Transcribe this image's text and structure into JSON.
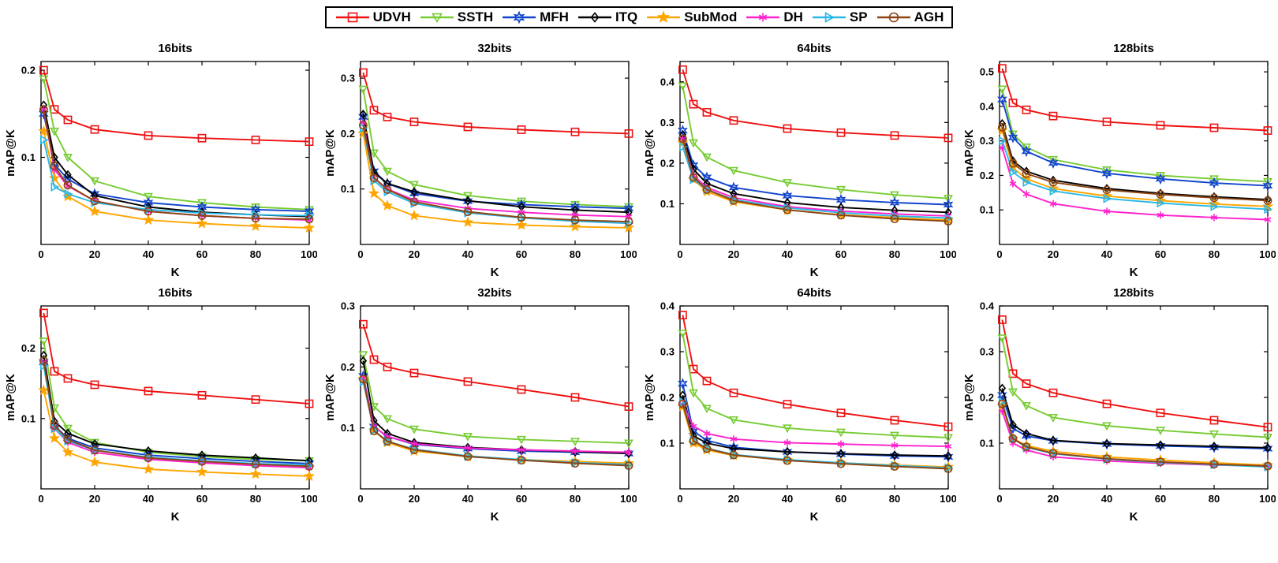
{
  "figure": {
    "type": "line-chart-grid",
    "rows": 2,
    "cols": 4
  },
  "legend": {
    "items": [
      {
        "label": "UDVH",
        "color": "#ee1111",
        "marker": "square"
      },
      {
        "label": "SSTH",
        "color": "#77cc33",
        "marker": "triangle-down"
      },
      {
        "label": "MFH",
        "color": "#1144cc",
        "marker": "hexagram"
      },
      {
        "label": "ITQ",
        "color": "#000000",
        "marker": "diamond"
      },
      {
        "label": "SubMod",
        "color": "#ffa500",
        "marker": "pentagram"
      },
      {
        "label": "DH",
        "color": "#ff22cc",
        "marker": "asterisk"
      },
      {
        "label": "SP",
        "color": "#2ab8e8",
        "marker": "triangle-right"
      },
      {
        "label": "AGH",
        "color": "#8b4513",
        "marker": "circle"
      }
    ]
  },
  "chart_data": [
    {
      "type": "line",
      "row": 1,
      "title": "16bits",
      "xlabel": "K",
      "ylabel": "mAP@K",
      "x": [
        1,
        5,
        10,
        20,
        40,
        60,
        80,
        100
      ],
      "xlim": [
        0,
        100
      ],
      "xticks": [
        0,
        20,
        40,
        60,
        80,
        100
      ],
      "ylim": [
        0,
        0.21
      ],
      "yticks": [
        0.1,
        0.2
      ],
      "series": [
        {
          "name": "UDVH",
          "values": [
            0.2,
            0.155,
            0.143,
            0.132,
            0.125,
            0.122,
            0.12,
            0.118
          ]
        },
        {
          "name": "SSTH",
          "values": [
            0.19,
            0.13,
            0.1,
            0.073,
            0.055,
            0.048,
            0.043,
            0.04
          ]
        },
        {
          "name": "MFH",
          "values": [
            0.15,
            0.092,
            0.075,
            0.058,
            0.048,
            0.043,
            0.04,
            0.038
          ]
        },
        {
          "name": "ITQ",
          "values": [
            0.16,
            0.1,
            0.08,
            0.056,
            0.043,
            0.037,
            0.034,
            0.032
          ]
        },
        {
          "name": "SubMod",
          "values": [
            0.13,
            0.076,
            0.055,
            0.038,
            0.028,
            0.024,
            0.021,
            0.019
          ]
        },
        {
          "name": "DH",
          "values": [
            0.155,
            0.086,
            0.067,
            0.05,
            0.038,
            0.033,
            0.03,
            0.028
          ]
        },
        {
          "name": "SP",
          "values": [
            0.12,
            0.066,
            0.058,
            0.048,
            0.04,
            0.036,
            0.034,
            0.033
          ]
        },
        {
          "name": "AGH",
          "values": [
            0.155,
            0.09,
            0.068,
            0.05,
            0.038,
            0.033,
            0.03,
            0.029
          ]
        }
      ]
    },
    {
      "type": "line",
      "row": 1,
      "title": "32bits",
      "xlabel": "K",
      "ylabel": "mAP@K",
      "x": [
        1,
        5,
        10,
        20,
        40,
        60,
        80,
        100
      ],
      "xlim": [
        0,
        100
      ],
      "xticks": [
        0,
        20,
        40,
        60,
        80,
        100
      ],
      "ylim": [
        0,
        0.33
      ],
      "yticks": [
        0.1,
        0.2,
        0.3
      ],
      "series": [
        {
          "name": "UDVH",
          "values": [
            0.31,
            0.242,
            0.23,
            0.221,
            0.212,
            0.207,
            0.203,
            0.2
          ]
        },
        {
          "name": "SSTH",
          "values": [
            0.28,
            0.165,
            0.132,
            0.108,
            0.088,
            0.078,
            0.072,
            0.068
          ]
        },
        {
          "name": "MFH",
          "values": [
            0.23,
            0.132,
            0.11,
            0.092,
            0.078,
            0.072,
            0.068,
            0.065
          ]
        },
        {
          "name": "ITQ",
          "values": [
            0.235,
            0.13,
            0.11,
            0.095,
            0.079,
            0.068,
            0.062,
            0.058
          ]
        },
        {
          "name": "SubMod",
          "values": [
            0.2,
            0.092,
            0.07,
            0.052,
            0.04,
            0.035,
            0.032,
            0.03
          ]
        },
        {
          "name": "DH",
          "values": [
            0.22,
            0.12,
            0.1,
            0.08,
            0.065,
            0.058,
            0.053,
            0.05
          ]
        },
        {
          "name": "SP",
          "values": [
            0.21,
            0.115,
            0.095,
            0.074,
            0.057,
            0.048,
            0.042,
            0.038
          ]
        },
        {
          "name": "AGH",
          "values": [
            0.215,
            0.12,
            0.099,
            0.077,
            0.059,
            0.049,
            0.044,
            0.041
          ]
        }
      ]
    },
    {
      "type": "line",
      "row": 1,
      "title": "64bits",
      "xlabel": "K",
      "ylabel": "mAP@K",
      "x": [
        1,
        5,
        10,
        20,
        40,
        60,
        80,
        100
      ],
      "xlim": [
        0,
        100
      ],
      "xticks": [
        0,
        20,
        40,
        60,
        80,
        100
      ],
      "ylim": [
        0,
        0.45
      ],
      "yticks": [
        0.1,
        0.2,
        0.3,
        0.4
      ],
      "series": [
        {
          "name": "UDVH",
          "values": [
            0.43,
            0.345,
            0.325,
            0.305,
            0.285,
            0.275,
            0.268,
            0.262
          ]
        },
        {
          "name": "SSTH",
          "values": [
            0.39,
            0.25,
            0.215,
            0.182,
            0.152,
            0.135,
            0.122,
            0.113
          ]
        },
        {
          "name": "MFH",
          "values": [
            0.28,
            0.195,
            0.165,
            0.14,
            0.12,
            0.11,
            0.103,
            0.098
          ]
        },
        {
          "name": "ITQ",
          "values": [
            0.27,
            0.185,
            0.15,
            0.125,
            0.103,
            0.091,
            0.084,
            0.079
          ]
        },
        {
          "name": "SubMod",
          "values": [
            0.25,
            0.16,
            0.13,
            0.105,
            0.085,
            0.073,
            0.066,
            0.06
          ]
        },
        {
          "name": "DH",
          "values": [
            0.26,
            0.17,
            0.14,
            0.115,
            0.093,
            0.082,
            0.075,
            0.07
          ]
        },
        {
          "name": "SP",
          "values": [
            0.24,
            0.16,
            0.135,
            0.11,
            0.09,
            0.078,
            0.07,
            0.065
          ]
        },
        {
          "name": "AGH",
          "values": [
            0.26,
            0.165,
            0.135,
            0.108,
            0.085,
            0.072,
            0.063,
            0.057
          ]
        }
      ]
    },
    {
      "type": "line",
      "row": 1,
      "title": "128bits",
      "xlabel": "K",
      "ylabel": "mAP@K",
      "x": [
        1,
        5,
        10,
        20,
        40,
        60,
        80,
        100
      ],
      "xlim": [
        0,
        100
      ],
      "xticks": [
        0,
        20,
        40,
        60,
        80,
        100
      ],
      "ylim": [
        0,
        0.53
      ],
      "yticks": [
        0.1,
        0.2,
        0.3,
        0.4,
        0.5
      ],
      "series": [
        {
          "name": "UDVH",
          "values": [
            0.51,
            0.41,
            0.39,
            0.372,
            0.355,
            0.345,
            0.338,
            0.33
          ]
        },
        {
          "name": "SSTH",
          "values": [
            0.45,
            0.32,
            0.282,
            0.246,
            0.216,
            0.2,
            0.19,
            0.182
          ]
        },
        {
          "name": "MFH",
          "values": [
            0.42,
            0.31,
            0.27,
            0.236,
            0.206,
            0.19,
            0.178,
            0.17
          ]
        },
        {
          "name": "ITQ",
          "values": [
            0.35,
            0.242,
            0.212,
            0.186,
            0.162,
            0.148,
            0.138,
            0.13
          ]
        },
        {
          "name": "SubMod",
          "values": [
            0.33,
            0.222,
            0.19,
            0.162,
            0.14,
            0.127,
            0.117,
            0.11
          ]
        },
        {
          "name": "DH",
          "values": [
            0.28,
            0.176,
            0.146,
            0.118,
            0.096,
            0.085,
            0.078,
            0.072
          ]
        },
        {
          "name": "SP",
          "values": [
            0.3,
            0.21,
            0.18,
            0.155,
            0.133,
            0.12,
            0.11,
            0.102
          ]
        },
        {
          "name": "AGH",
          "values": [
            0.34,
            0.235,
            0.205,
            0.18,
            0.158,
            0.145,
            0.135,
            0.127
          ]
        }
      ]
    },
    {
      "type": "line",
      "row": 2,
      "title": "16bits",
      "xlabel": "K",
      "ylabel": "mAP@K",
      "x": [
        1,
        5,
        10,
        20,
        40,
        60,
        80,
        100
      ],
      "xlim": [
        0,
        100
      ],
      "xticks": [
        0,
        20,
        40,
        60,
        80,
        100
      ],
      "ylim": [
        0,
        0.26
      ],
      "yticks": [
        0.1,
        0.2
      ],
      "series": [
        {
          "name": "UDVH",
          "values": [
            0.25,
            0.167,
            0.157,
            0.148,
            0.139,
            0.133,
            0.127,
            0.121
          ]
        },
        {
          "name": "SSTH",
          "values": [
            0.21,
            0.115,
            0.086,
            0.066,
            0.052,
            0.046,
            0.042,
            0.04
          ]
        },
        {
          "name": "MFH",
          "values": [
            0.18,
            0.09,
            0.072,
            0.058,
            0.048,
            0.043,
            0.039,
            0.036
          ]
        },
        {
          "name": "ITQ",
          "values": [
            0.19,
            0.096,
            0.079,
            0.064,
            0.054,
            0.048,
            0.044,
            0.04
          ]
        },
        {
          "name": "SubMod",
          "values": [
            0.14,
            0.072,
            0.052,
            0.038,
            0.028,
            0.024,
            0.021,
            0.018
          ]
        },
        {
          "name": "DH",
          "values": [
            0.18,
            0.086,
            0.066,
            0.052,
            0.042,
            0.037,
            0.033,
            0.03
          ]
        },
        {
          "name": "SP",
          "values": [
            0.175,
            0.086,
            0.068,
            0.055,
            0.045,
            0.04,
            0.036,
            0.034
          ]
        },
        {
          "name": "AGH",
          "values": [
            0.182,
            0.09,
            0.07,
            0.055,
            0.044,
            0.039,
            0.035,
            0.032
          ]
        }
      ]
    },
    {
      "type": "line",
      "row": 2,
      "title": "32bits",
      "xlabel": "K",
      "ylabel": "mAP@K",
      "x": [
        1,
        5,
        10,
        20,
        40,
        60,
        80,
        100
      ],
      "xlim": [
        0,
        100
      ],
      "xticks": [
        0,
        20,
        40,
        60,
        80,
        100
      ],
      "ylim": [
        0,
        0.3
      ],
      "yticks": [
        0.1,
        0.2,
        0.3
      ],
      "series": [
        {
          "name": "UDVH",
          "values": [
            0.27,
            0.212,
            0.2,
            0.19,
            0.176,
            0.163,
            0.15,
            0.135
          ]
        },
        {
          "name": "SSTH",
          "values": [
            0.22,
            0.135,
            0.115,
            0.098,
            0.086,
            0.081,
            0.078,
            0.075
          ]
        },
        {
          "name": "MFH",
          "values": [
            0.185,
            0.102,
            0.086,
            0.073,
            0.066,
            0.062,
            0.06,
            0.058
          ]
        },
        {
          "name": "ITQ",
          "values": [
            0.21,
            0.112,
            0.091,
            0.076,
            0.068,
            0.064,
            0.061,
            0.058
          ]
        },
        {
          "name": "SubMod",
          "values": [
            0.18,
            0.096,
            0.076,
            0.062,
            0.053,
            0.048,
            0.045,
            0.042
          ]
        },
        {
          "name": "DH",
          "values": [
            0.182,
            0.102,
            0.086,
            0.074,
            0.067,
            0.064,
            0.062,
            0.06
          ]
        },
        {
          "name": "SP",
          "values": [
            0.176,
            0.096,
            0.078,
            0.065,
            0.054,
            0.048,
            0.043,
            0.04
          ]
        },
        {
          "name": "AGH",
          "values": [
            0.18,
            0.095,
            0.078,
            0.064,
            0.053,
            0.047,
            0.042,
            0.038
          ]
        }
      ]
    },
    {
      "type": "line",
      "row": 2,
      "title": "64bits",
      "xlabel": "K",
      "ylabel": "mAP@K",
      "x": [
        1,
        5,
        10,
        20,
        40,
        60,
        80,
        100
      ],
      "xlim": [
        0,
        100
      ],
      "xticks": [
        0,
        20,
        40,
        60,
        80,
        100
      ],
      "ylim": [
        0,
        0.4
      ],
      "yticks": [
        0.1,
        0.2,
        0.3,
        0.4
      ],
      "series": [
        {
          "name": "UDVH",
          "values": [
            0.38,
            0.262,
            0.236,
            0.21,
            0.185,
            0.166,
            0.15,
            0.136
          ]
        },
        {
          "name": "SSTH",
          "values": [
            0.34,
            0.21,
            0.176,
            0.151,
            0.133,
            0.124,
            0.117,
            0.112
          ]
        },
        {
          "name": "MFH",
          "values": [
            0.23,
            0.126,
            0.106,
            0.091,
            0.081,
            0.076,
            0.072,
            0.07
          ]
        },
        {
          "name": "ITQ",
          "values": [
            0.205,
            0.116,
            0.1,
            0.088,
            0.081,
            0.077,
            0.074,
            0.072
          ]
        },
        {
          "name": "SubMod",
          "values": [
            0.18,
            0.1,
            0.085,
            0.073,
            0.063,
            0.057,
            0.052,
            0.048
          ]
        },
        {
          "name": "DH",
          "values": [
            0.185,
            0.137,
            0.121,
            0.109,
            0.101,
            0.098,
            0.095,
            0.093
          ]
        },
        {
          "name": "SP",
          "values": [
            0.19,
            0.106,
            0.089,
            0.075,
            0.064,
            0.057,
            0.051,
            0.046
          ]
        },
        {
          "name": "AGH",
          "values": [
            0.186,
            0.105,
            0.088,
            0.074,
            0.062,
            0.055,
            0.049,
            0.044
          ]
        }
      ]
    },
    {
      "type": "line",
      "row": 2,
      "title": "128bits",
      "xlabel": "K",
      "ylabel": "mAP@K",
      "x": [
        1,
        5,
        10,
        20,
        40,
        60,
        80,
        100
      ],
      "xlim": [
        0,
        100
      ],
      "xticks": [
        0,
        20,
        40,
        60,
        80,
        100
      ],
      "ylim": [
        0,
        0.4
      ],
      "yticks": [
        0.1,
        0.2,
        0.3,
        0.4
      ],
      "series": [
        {
          "name": "UDVH",
          "values": [
            0.37,
            0.252,
            0.23,
            0.21,
            0.186,
            0.166,
            0.15,
            0.135
          ]
        },
        {
          "name": "SSTH",
          "values": [
            0.33,
            0.212,
            0.182,
            0.156,
            0.138,
            0.128,
            0.12,
            0.113
          ]
        },
        {
          "name": "MFH",
          "values": [
            0.205,
            0.132,
            0.116,
            0.105,
            0.098,
            0.094,
            0.091,
            0.088
          ]
        },
        {
          "name": "ITQ",
          "values": [
            0.22,
            0.14,
            0.121,
            0.106,
            0.099,
            0.096,
            0.093,
            0.09
          ]
        },
        {
          "name": "SubMod",
          "values": [
            0.182,
            0.11,
            0.095,
            0.082,
            0.07,
            0.063,
            0.057,
            0.052
          ]
        },
        {
          "name": "DH",
          "values": [
            0.17,
            0.1,
            0.085,
            0.07,
            0.061,
            0.056,
            0.052,
            0.05
          ]
        },
        {
          "name": "SP",
          "values": [
            0.19,
            0.11,
            0.091,
            0.077,
            0.065,
            0.058,
            0.053,
            0.048
          ]
        },
        {
          "name": "AGH",
          "values": [
            0.186,
            0.11,
            0.092,
            0.078,
            0.066,
            0.059,
            0.054,
            0.05
          ]
        }
      ]
    }
  ]
}
